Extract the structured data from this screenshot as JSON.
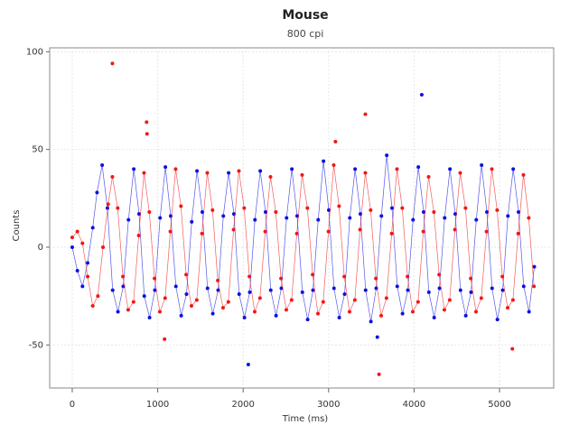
{
  "chart_data": {
    "type": "scatter",
    "title": "Mouse",
    "subtitle": "800 cpi",
    "x_label": "Time (ms)",
    "y_label": "Counts",
    "xlim": [
      -264,
      5634
    ],
    "ylim": [
      -72,
      102
    ],
    "xticks": [
      0,
      1000,
      2000,
      3000,
      4000,
      5000
    ],
    "yticks": [
      -50,
      0,
      50,
      100
    ],
    "grid": true,
    "series": [
      {
        "color": "#1010e0",
        "line": true,
        "x": [
          0,
          60,
          120,
          180,
          240,
          290,
          350,
          412,
          473,
          535,
          597,
          658,
          720,
          782,
          843,
          905,
          967,
          1028,
          1090,
          1152,
          1213,
          1275,
          1337,
          1398,
          1460,
          1522,
          1583,
          1645,
          1707,
          1768,
          1830,
          1892,
          1953,
          2015,
          2077,
          2138,
          2200,
          2262,
          2323,
          2385,
          2447,
          2508,
          2570,
          2632,
          2693,
          2755,
          2817,
          2878,
          2940,
          3002,
          3063,
          3125,
          3187,
          3248,
          3310,
          3372,
          3433,
          3495,
          3557,
          3618,
          3680,
          3742,
          3803,
          3865,
          3927,
          3988,
          4050,
          4112,
          4173,
          4235,
          4297,
          4358,
          4420,
          4482,
          4543,
          4605,
          4667,
          4728,
          4790,
          4852,
          4913,
          4975,
          5037,
          5098,
          5160,
          5222,
          5283,
          5345,
          5407
        ],
        "values": [
          0,
          -12,
          -20,
          -8,
          10,
          28,
          42,
          20,
          -22,
          -33,
          -20,
          14,
          40,
          17,
          -25,
          -36,
          -22,
          15,
          41,
          16,
          -20,
          -35,
          -24,
          13,
          39,
          18,
          -21,
          -34,
          -22,
          16,
          38,
          17,
          -24,
          -36,
          -23,
          14,
          39,
          18,
          -22,
          -35,
          -21,
          15,
          40,
          16,
          -23,
          -37,
          -22,
          14,
          44,
          19,
          -21,
          -36,
          -24,
          15,
          40,
          17,
          -22,
          -38,
          -21,
          16,
          47,
          20,
          -20,
          -34,
          -22,
          14,
          41,
          18,
          -23,
          -36,
          -21,
          15,
          40,
          17,
          -22,
          -35,
          -23,
          14,
          42,
          18,
          -21,
          -37,
          -22,
          16,
          40,
          18,
          -20,
          -33,
          -10
        ]
      },
      {
        "color": "#f01818",
        "line": true,
        "x": [
          0,
          60,
          120,
          180,
          240,
          300,
          360,
          420,
          470,
          532,
          593,
          655,
          717,
          778,
          840,
          902,
          963,
          1025,
          1087,
          1148,
          1210,
          1272,
          1333,
          1395,
          1457,
          1518,
          1580,
          1642,
          1703,
          1765,
          1827,
          1888,
          1950,
          2012,
          2073,
          2135,
          2197,
          2258,
          2320,
          2382,
          2443,
          2505,
          2567,
          2628,
          2690,
          2752,
          2813,
          2875,
          2937,
          2998,
          3060,
          3122,
          3183,
          3245,
          3307,
          3368,
          3430,
          3492,
          3553,
          3615,
          3677,
          3738,
          3800,
          3862,
          3923,
          3985,
          4047,
          4108,
          4170,
          4232,
          4293,
          4355,
          4417,
          4478,
          4540,
          4602,
          4663,
          4725,
          4787,
          4848,
          4910,
          4972,
          5033,
          5095,
          5157,
          5218,
          5280,
          5342,
          5403
        ],
        "values": [
          5,
          8,
          2,
          -15,
          -30,
          -25,
          0,
          22,
          36,
          20,
          -15,
          -32,
          -28,
          6,
          38,
          18,
          -16,
          -33,
          -26,
          8,
          40,
          21,
          -14,
          -30,
          -27,
          7,
          38,
          19,
          -17,
          -31,
          -28,
          9,
          39,
          20,
          -15,
          -33,
          -26,
          8,
          36,
          18,
          -16,
          -32,
          -27,
          7,
          37,
          20,
          -14,
          -34,
          -28,
          8,
          42,
          21,
          -15,
          -33,
          -27,
          9,
          38,
          19,
          -16,
          -35,
          -26,
          7,
          40,
          20,
          -15,
          -33,
          -28,
          8,
          36,
          18,
          -14,
          -32,
          -27,
          9,
          38,
          20,
          -16,
          -33,
          -26,
          8,
          40,
          19,
          -15,
          -31,
          -27,
          7,
          37,
          15,
          -20
        ]
      },
      {
        "color": "#1010e0",
        "line": false,
        "x": [
          2060,
          3570,
          4090
        ],
        "values": [
          -60,
          -46,
          78
        ]
      },
      {
        "color": "#f01818",
        "line": false,
        "x": [
          470,
          870,
          875,
          1080,
          3080,
          3430,
          3590,
          5150
        ],
        "values": [
          94,
          64,
          58,
          -47,
          54,
          68,
          -65,
          -52
        ]
      }
    ]
  }
}
